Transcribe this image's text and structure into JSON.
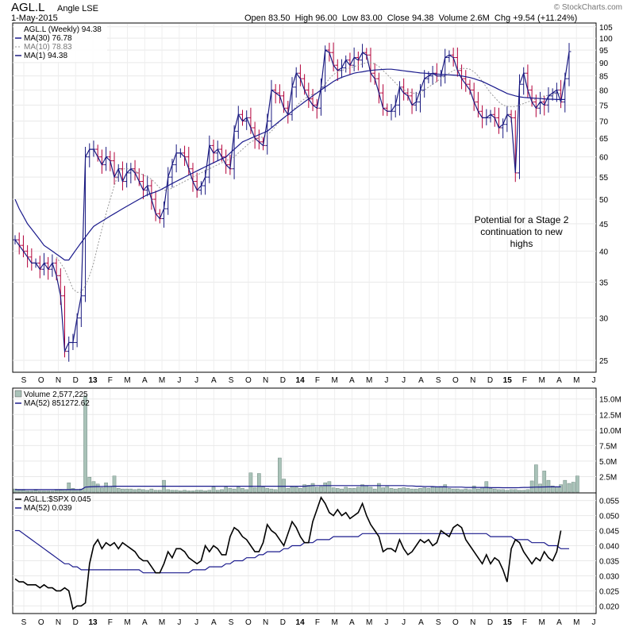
{
  "header": {
    "symbol": "AGL.L",
    "name": "Angle LSE",
    "date": "1-May-2015",
    "ohlc_line": "Open 83.50  High 96.00  Low 83.00  Close 94.38  Volume 2.6M  Chg +9.54 (+11.24%)",
    "watermark": "© StockCharts.com"
  },
  "colors": {
    "up": "#1a1a80",
    "down": "#b3003a",
    "ma_long": "#1a1a8c",
    "ma_short": "#999999",
    "volume": "#a9c2b8",
    "ratio": "#000000"
  },
  "chart_data": [
    {
      "type": "ohlc",
      "legend": [
        "AGL.L (Weekly) 94.38",
        "MA(30) 76.78",
        "MA(10) 78.83",
        "MA(1) 94.38"
      ],
      "y_ticks": [
        25,
        30,
        35,
        40,
        45,
        50,
        55,
        60,
        65,
        70,
        75,
        80,
        85,
        90,
        95,
        100,
        105
      ],
      "ylim": [
        24,
        106
      ],
      "y_scale": "log",
      "x_ticks": [
        "S",
        "O",
        "N",
        "D",
        "13",
        "F",
        "M",
        "A",
        "M",
        "J",
        "J",
        "A",
        "S",
        "O",
        "N",
        "D",
        "14",
        "F",
        "M",
        "A",
        "M",
        "J",
        "J",
        "A",
        "S",
        "O",
        "N",
        "D",
        "15",
        "F",
        "M",
        "A",
        "M",
        "J"
      ],
      "bold_ticks": [
        "13",
        "14",
        "15"
      ],
      "annotation": [
        "Potential for a Stage 2",
        "continuation to new",
        "highs"
      ],
      "close": [
        42,
        41,
        40,
        39,
        38,
        38,
        37,
        38,
        37,
        38,
        36,
        33,
        26,
        27,
        27,
        30,
        33,
        60,
        62,
        62,
        60,
        58,
        60,
        59,
        55,
        57,
        54,
        56,
        57,
        56,
        54,
        52,
        53,
        50,
        47,
        46,
        48,
        55,
        58,
        61,
        61,
        60,
        57,
        54,
        52,
        53,
        55,
        63,
        61,
        62,
        60,
        58,
        57,
        67,
        72,
        70,
        71,
        68,
        65,
        64,
        63,
        70,
        80,
        79,
        78,
        74,
        72,
        81,
        86,
        84,
        80,
        77,
        75,
        74,
        81,
        95,
        94,
        89,
        87,
        88,
        91,
        89,
        92,
        91,
        94,
        93,
        86,
        84,
        79,
        74,
        73,
        73,
        75,
        81,
        79,
        78,
        75,
        76,
        80,
        84,
        85,
        86,
        85,
        85,
        92,
        93,
        92,
        87,
        84,
        82,
        80,
        76,
        73,
        71,
        71,
        72,
        71,
        68,
        69,
        72,
        71,
        56,
        82,
        86,
        80,
        76,
        74,
        76,
        75,
        78,
        79,
        80,
        76,
        84,
        94.38
      ],
      "ma30": [
        50,
        48,
        46.5,
        45,
        44,
        43,
        42,
        41,
        40.5,
        40,
        39.5,
        39,
        38.5,
        38.5,
        39.5,
        40.5,
        41.5,
        42.5,
        43.5,
        44.5,
        45,
        45.5,
        46,
        46.5,
        47,
        47.5,
        48,
        48.5,
        49,
        49.5,
        50,
        50.5,
        51,
        51.3,
        51.6,
        52,
        52.5,
        53,
        53.5,
        54,
        54.5,
        55,
        55.5,
        56,
        56.5,
        57,
        57.5,
        58,
        58.5,
        59,
        59.5,
        60,
        61,
        62,
        63,
        64,
        64.5,
        65,
        65.5,
        66,
        66.5,
        67,
        68,
        69,
        70,
        71,
        72,
        73,
        74,
        75,
        76,
        77,
        78,
        79,
        80,
        81,
        82,
        83,
        83.8,
        84.5,
        85,
        85.5,
        86,
        86.3,
        86.5,
        86.8,
        87,
        87.2,
        87.3,
        87.4,
        87.5,
        87.5,
        87.3,
        87.1,
        86.9,
        86.7,
        86.5,
        86.3,
        86.1,
        86,
        85.9,
        85.8,
        85.7,
        85.6,
        85.5,
        85.4,
        85.3,
        85.2,
        85,
        84.7,
        84.4,
        84,
        83.5,
        83,
        82.3,
        81.6,
        80.9,
        80.2,
        79.5,
        78.8,
        78.4,
        78,
        77.7,
        77.5,
        77.4,
        77.3,
        77.2,
        77.1,
        77,
        76.9,
        76.9,
        76.8,
        76.8,
        76.78
      ],
      "ma10": [
        null,
        null,
        null,
        null,
        null,
        null,
        null,
        null,
        null,
        null,
        39,
        38,
        37,
        35.5,
        34,
        33.5,
        33.5,
        34.5,
        36,
        38,
        41,
        44,
        47,
        50,
        53,
        56,
        57,
        57,
        57,
        56.5,
        56,
        55.5,
        55,
        54.5,
        53.5,
        52.5,
        52,
        52,
        52.5,
        53,
        53.5,
        54,
        54.5,
        55,
        55.5,
        56,
        56.5,
        57,
        57.5,
        58,
        58.5,
        59,
        59.5,
        60,
        61,
        62,
        63,
        64,
        64.5,
        65,
        65.5,
        66,
        67,
        68.5,
        70,
        71,
        72,
        73,
        74.5,
        76,
        77,
        78,
        78.5,
        79,
        80,
        82,
        84,
        85.5,
        86.5,
        87,
        87.5,
        88,
        88.5,
        89,
        89.5,
        90,
        90,
        89.5,
        88.5,
        87,
        85.5,
        84,
        82.5,
        81,
        80,
        79.5,
        79,
        78.8,
        79,
        80,
        81,
        82,
        83,
        84,
        85,
        86,
        87,
        87.5,
        87.8,
        87.8,
        87.5,
        86.5,
        85,
        83,
        81,
        79,
        77.5,
        76,
        75,
        74.5,
        74.5,
        74.5,
        75,
        75.5,
        76,
        76.5,
        77,
        77.5,
        78,
        78.2,
        78.4,
        78.6,
        78.83
      ]
    },
    {
      "type": "bar",
      "legend": [
        "Volume 2,577,225",
        "MA(52) 851272.62"
      ],
      "y_ticks": [
        "2.5M",
        "5.0M",
        "7.5M",
        "10.0M",
        "12.5M",
        "15.0M"
      ],
      "y_tick_values": [
        2.5,
        5,
        7.5,
        10,
        12.5,
        15
      ],
      "ylim": [
        0,
        16.5
      ],
      "unit": "millions",
      "values": [
        0.5,
        0.3,
        0.3,
        0.2,
        0.2,
        0.3,
        0.2,
        0.2,
        0.2,
        0.2,
        0.3,
        0.3,
        0.4,
        1.5,
        0.6,
        0.4,
        0.5,
        15.5,
        2.4,
        1.7,
        1.3,
        0.7,
        1.5,
        0.9,
        2.6,
        0.6,
        0.5,
        0.5,
        0.5,
        0.4,
        0.5,
        0.4,
        0.3,
        0.5,
        0.3,
        0.3,
        1.9,
        0.4,
        0.3,
        0.3,
        0.2,
        0.3,
        0.2,
        0.2,
        0.3,
        0.3,
        0.2,
        0.3,
        0.8,
        0.3,
        0.4,
        0.8,
        0.6,
        0.5,
        0.8,
        0.6,
        0.4,
        3.1,
        0.7,
        3.0,
        0.8,
        0.6,
        0.5,
        0.4,
        5.5,
        2.1,
        0.6,
        0.9,
        0.8,
        0.6,
        1.2,
        1.1,
        1.4,
        0.8,
        0.9,
        1.5,
        1.7,
        0.7,
        0.6,
        0.5,
        0.8,
        0.6,
        0.6,
        0.8,
        1.2,
        1.0,
        0.8,
        0.5,
        1.4,
        0.7,
        0.9,
        0.6,
        0.5,
        0.6,
        0.7,
        0.6,
        0.5,
        0.5,
        0.6,
        0.7,
        0.6,
        0.8,
        0.8,
        0.9,
        1.2,
        0.6,
        0.5,
        0.5,
        0.4,
        0.5,
        0.4,
        1.0,
        0.5,
        0.8,
        1.7,
        0.6,
        0.5,
        0.4,
        0.4,
        0.3,
        0.4,
        0.4,
        0.3,
        0.3,
        0.4,
        1.8,
        4.4,
        1.3,
        3.4,
        1.9,
        1.0,
        0.8,
        1.2,
        1.9,
        1.4,
        1.6,
        2.6
      ],
      "ma52": [
        0.4,
        0.4,
        0.4,
        0.4,
        0.4,
        0.4,
        0.4,
        0.4,
        0.4,
        0.4,
        0.4,
        0.4,
        0.4,
        0.4,
        0.4,
        0.4,
        0.4,
        0.8,
        0.85,
        0.88,
        0.9,
        0.9,
        0.92,
        0.92,
        0.95,
        0.95,
        0.95,
        0.95,
        0.95,
        0.95,
        0.95,
        0.95,
        0.95,
        0.95,
        0.95,
        0.95,
        0.95,
        0.95,
        0.95,
        0.95,
        0.95,
        0.95,
        0.95,
        0.95,
        0.95,
        0.95,
        0.95,
        0.95,
        0.95,
        0.95,
        0.95,
        0.95,
        0.95,
        0.95,
        0.95,
        0.95,
        0.95,
        0.95,
        0.95,
        0.95,
        0.95,
        0.95,
        0.95,
        0.95,
        0.95,
        0.95,
        0.95,
        0.95,
        0.95,
        0.95,
        0.95,
        1.0,
        1.05,
        1.05,
        1.05,
        1.05,
        1.05,
        1.05,
        1.05,
        1.05,
        1.05,
        1.05,
        1.05,
        1.05,
        1.05,
        1.05,
        1.05,
        1.05,
        1.05,
        1.05,
        1.05,
        1.05,
        1.05,
        1.05,
        1.05,
        1.0,
        1.0,
        0.95,
        0.95,
        0.9,
        0.9,
        0.9,
        0.85,
        0.85,
        0.85,
        0.8,
        0.8,
        0.8,
        0.8,
        0.75,
        0.75,
        0.75,
        0.75,
        0.75,
        0.75,
        0.72,
        0.72,
        0.72,
        0.7,
        0.7,
        0.7,
        0.7,
        0.72,
        0.75,
        0.75,
        0.78,
        0.8,
        0.82,
        0.83,
        0.84,
        0.85,
        0.85,
        0.85
      ]
    },
    {
      "type": "line",
      "legend": [
        "AGL.L:$SPX 0.045",
        "MA(52) 0.039"
      ],
      "y_ticks": [
        "0.020",
        "0.025",
        "0.030",
        "0.035",
        "0.040",
        "0.045",
        "0.050",
        "0.055"
      ],
      "y_tick_values": [
        0.02,
        0.025,
        0.03,
        0.035,
        0.04,
        0.045,
        0.05,
        0.055
      ],
      "ylim": [
        0.018,
        0.057
      ],
      "ratio": [
        0.029,
        0.028,
        0.028,
        0.027,
        0.027,
        0.027,
        0.026,
        0.027,
        0.026,
        0.026,
        0.025,
        0.025,
        0.026,
        0.025,
        0.019,
        0.02,
        0.02,
        0.021,
        0.034,
        0.04,
        0.042,
        0.039,
        0.041,
        0.04,
        0.041,
        0.039,
        0.041,
        0.04,
        0.039,
        0.038,
        0.036,
        0.035,
        0.035,
        0.033,
        0.031,
        0.031,
        0.034,
        0.038,
        0.036,
        0.039,
        0.039,
        0.038,
        0.036,
        0.035,
        0.034,
        0.035,
        0.04,
        0.038,
        0.04,
        0.039,
        0.037,
        0.037,
        0.043,
        0.046,
        0.045,
        0.043,
        0.042,
        0.04,
        0.038,
        0.038,
        0.041,
        0.047,
        0.045,
        0.044,
        0.042,
        0.04,
        0.044,
        0.048,
        0.046,
        0.043,
        0.041,
        0.041,
        0.048,
        0.052,
        0.056,
        0.054,
        0.051,
        0.05,
        0.052,
        0.05,
        0.051,
        0.049,
        0.05,
        0.051,
        0.054,
        0.05,
        0.047,
        0.045,
        0.043,
        0.038,
        0.039,
        0.039,
        0.038,
        0.042,
        0.039,
        0.037,
        0.038,
        0.04,
        0.042,
        0.041,
        0.042,
        0.04,
        0.041,
        0.045,
        0.044,
        0.043,
        0.046,
        0.047,
        0.046,
        0.042,
        0.04,
        0.038,
        0.036,
        0.034,
        0.037,
        0.034,
        0.036,
        0.035,
        0.032,
        0.028,
        0.039,
        0.042,
        0.041,
        0.038,
        0.036,
        0.034,
        0.036,
        0.035,
        0.038,
        0.036,
        0.035,
        0.038,
        0.045
      ],
      "ma52": [
        0.045,
        0.045,
        0.044,
        0.043,
        0.042,
        0.041,
        0.04,
        0.039,
        0.038,
        0.037,
        0.036,
        0.035,
        0.034,
        0.034,
        0.033,
        0.033,
        0.032,
        0.032,
        0.032,
        0.032,
        0.032,
        0.032,
        0.032,
        0.032,
        0.032,
        0.032,
        0.032,
        0.032,
        0.032,
        0.032,
        0.032,
        0.031,
        0.031,
        0.031,
        0.031,
        0.031,
        0.031,
        0.031,
        0.031,
        0.031,
        0.031,
        0.031,
        0.031,
        0.032,
        0.032,
        0.032,
        0.032,
        0.033,
        0.033,
        0.033,
        0.033,
        0.034,
        0.034,
        0.035,
        0.035,
        0.035,
        0.036,
        0.036,
        0.036,
        0.037,
        0.037,
        0.038,
        0.038,
        0.038,
        0.038,
        0.039,
        0.039,
        0.04,
        0.04,
        0.04,
        0.041,
        0.041,
        0.041,
        0.042,
        0.042,
        0.042,
        0.042,
        0.043,
        0.043,
        0.043,
        0.043,
        0.043,
        0.043,
        0.043,
        0.044,
        0.044,
        0.044,
        0.044,
        0.044,
        0.044,
        0.044,
        0.044,
        0.044,
        0.044,
        0.044,
        0.044,
        0.044,
        0.044,
        0.044,
        0.044,
        0.044,
        0.044,
        0.044,
        0.044,
        0.044,
        0.044,
        0.044,
        0.044,
        0.044,
        0.044,
        0.044,
        0.044,
        0.044,
        0.044,
        0.044,
        0.043,
        0.043,
        0.043,
        0.043,
        0.043,
        0.043,
        0.042,
        0.042,
        0.042,
        0.042,
        0.041,
        0.041,
        0.041,
        0.041,
        0.04,
        0.04,
        0.04,
        0.039,
        0.039,
        0.039
      ]
    }
  ]
}
